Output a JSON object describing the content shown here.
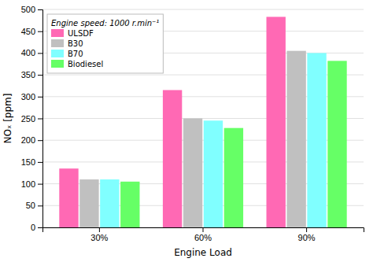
{
  "chart_data": {
    "type": "bar",
    "categories": [
      "30%",
      "60%",
      "90%"
    ],
    "series": [
      {
        "name": "ULSDF",
        "color": "#FF69B4",
        "values": [
          135,
          315,
          483
        ]
      },
      {
        "name": "B30",
        "color": "#C0C0C0",
        "values": [
          110,
          250,
          405
        ]
      },
      {
        "name": "B70",
        "color": "#80FFFF",
        "values": [
          110,
          245,
          400
        ]
      },
      {
        "name": "Biodiesel",
        "color": "#66FF66",
        "values": [
          105,
          228,
          382
        ]
      }
    ],
    "legend_title": "Engine speed: 1000 r.min⁻¹",
    "xlabel": "Engine Load",
    "ylabel": "NOₓ [ppm]",
    "ylim": [
      0,
      500
    ],
    "yticks": [
      0,
      50,
      100,
      150,
      200,
      250,
      300,
      350,
      400,
      450,
      500
    ],
    "grid": true,
    "legend": "upper left"
  }
}
